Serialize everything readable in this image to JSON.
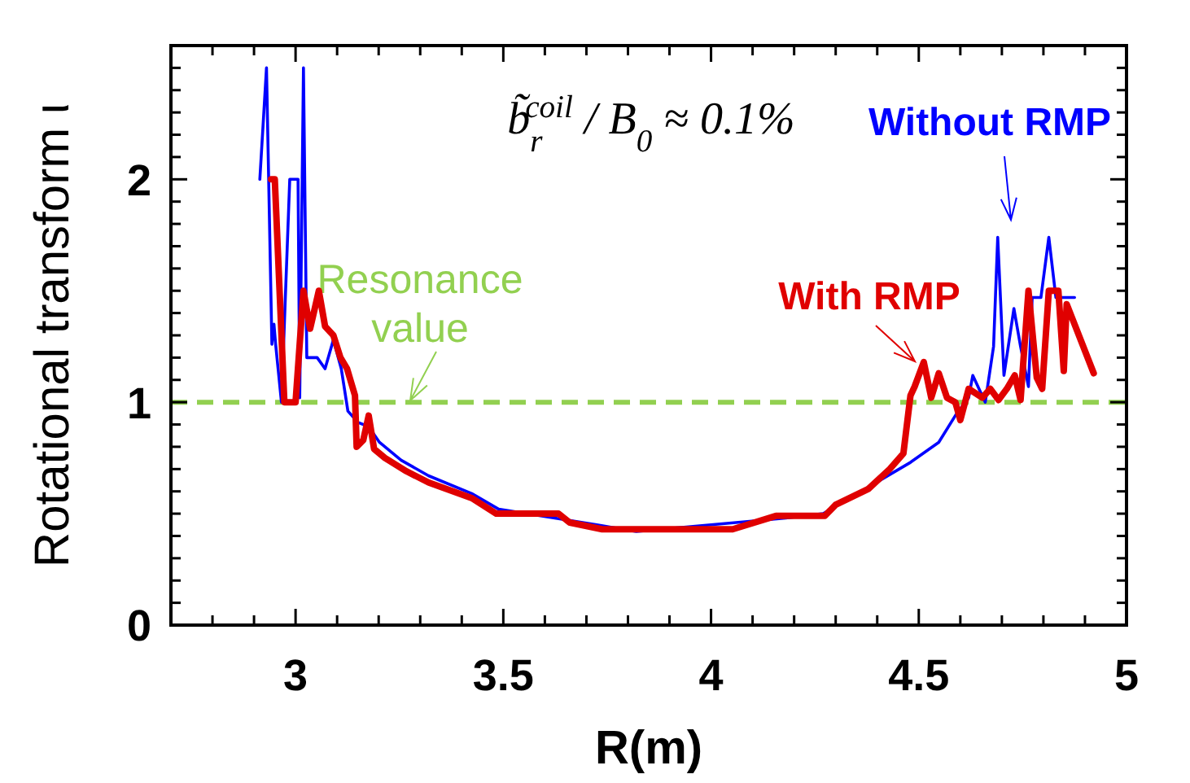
{
  "chart_data": {
    "type": "line",
    "xlabel": "R(m)",
    "ylabel": "Rotational transform ι",
    "xlim": [
      2.7,
      5
    ],
    "ylim": [
      0,
      2.6
    ],
    "xticks": [
      {
        "value": 2.7,
        "label": null
      },
      {
        "value": 2.8,
        "label": null
      },
      {
        "value": 2.9,
        "label": null
      },
      3,
      {
        "value": 3.1,
        "label": null
      },
      {
        "value": 3.2,
        "label": null
      },
      {
        "value": 3.3,
        "label": null
      },
      {
        "value": 3.4,
        "label": null
      },
      3.5,
      {
        "value": 3.6,
        "label": null
      },
      {
        "value": 3.7,
        "label": null
      },
      {
        "value": 3.8,
        "label": null
      },
      {
        "value": 3.9,
        "label": null
      },
      4,
      {
        "value": 4.1,
        "label": null
      },
      {
        "value": 4.2,
        "label": null
      },
      {
        "value": 4.3,
        "label": null
      },
      {
        "value": 4.4,
        "label": null
      },
      4.5,
      {
        "value": 4.6,
        "label": null
      },
      {
        "value": 4.7,
        "label": null
      },
      {
        "value": 4.8,
        "label": null
      },
      {
        "value": 4.9,
        "label": null
      },
      5
    ],
    "yticks": [
      0,
      {
        "value": 0.1,
        "label": null
      },
      {
        "value": 0.2,
        "label": null
      },
      {
        "value": 0.3,
        "label": null
      },
      {
        "value": 0.4,
        "label": null
      },
      {
        "value": 0.5,
        "label": null
      },
      {
        "value": 0.6,
        "label": null
      },
      {
        "value": 0.7,
        "label": null
      },
      {
        "value": 0.8,
        "label": null
      },
      {
        "value": 0.9,
        "label": null
      },
      1,
      {
        "value": 1.1,
        "label": null
      },
      {
        "value": 1.2,
        "label": null
      },
      {
        "value": 1.3,
        "label": null
      },
      {
        "value": 1.4,
        "label": null
      },
      {
        "value": 1.5,
        "label": null
      },
      {
        "value": 1.6,
        "label": null
      },
      {
        "value": 1.7,
        "label": null
      },
      {
        "value": 1.8,
        "label": null
      },
      {
        "value": 1.9,
        "label": null
      },
      2,
      {
        "value": 2.1,
        "label": null
      },
      {
        "value": 2.2,
        "label": null
      },
      {
        "value": 2.3,
        "label": null
      },
      {
        "value": 2.4,
        "label": null
      },
      {
        "value": 2.5,
        "label": null
      },
      {
        "value": 2.6,
        "label": null
      }
    ],
    "marker": "none",
    "series": [
      {
        "name": "Without RMP",
        "color": "#0000ff",
        "x": [
          2.914,
          2.93,
          2.943,
          2.948,
          2.952,
          2.966,
          2.986,
          3.006,
          3.01,
          3.019,
          3.027,
          3.052,
          3.071,
          3.091,
          3.11,
          3.126,
          3.15,
          3.176,
          3.202,
          3.254,
          3.32,
          3.424,
          3.489,
          3.59,
          3.725,
          3.82,
          4.18,
          4.27,
          4.48,
          4.548,
          4.588,
          4.62,
          4.63,
          4.66,
          4.68,
          4.69,
          4.705,
          4.729,
          4.745,
          4.764,
          4.773,
          4.794,
          4.813,
          4.83,
          4.875
        ],
        "values": [
          2.0,
          2.5,
          1.26,
          1.35,
          1.26,
          1.0,
          2.0,
          2.0,
          1.02,
          2.5,
          1.2,
          1.2,
          1.15,
          1.28,
          1.15,
          0.96,
          0.91,
          0.89,
          0.82,
          0.74,
          0.67,
          0.59,
          0.52,
          0.49,
          0.45,
          0.42,
          0.48,
          0.5,
          0.73,
          0.82,
          0.94,
          1.02,
          1.12,
          1.0,
          1.25,
          1.74,
          1.12,
          1.42,
          1.25,
          1.07,
          1.47,
          1.47,
          1.74,
          1.47,
          1.47
        ]
      },
      {
        "name": "With RMP",
        "color": "#e00000",
        "x": [
          2.941,
          2.95,
          2.973,
          3.0,
          3.019,
          3.035,
          3.056,
          3.071,
          3.091,
          3.108,
          3.124,
          3.143,
          3.147,
          3.163,
          3.176,
          3.189,
          3.215,
          3.267,
          3.32,
          3.424,
          3.483,
          3.633,
          3.66,
          3.738,
          4.052,
          4.156,
          4.274,
          4.3,
          4.378,
          4.43,
          4.463,
          4.48,
          4.49,
          4.512,
          4.53,
          4.548,
          4.568,
          4.588,
          4.6,
          4.62,
          4.653,
          4.672,
          4.692,
          4.712,
          4.731,
          4.745,
          4.764,
          4.784,
          4.797,
          4.813,
          4.836,
          4.849,
          4.856,
          4.921
        ],
        "values": [
          2.0,
          2.0,
          1.0,
          1.0,
          1.5,
          1.33,
          1.5,
          1.34,
          1.3,
          1.2,
          1.15,
          1.03,
          0.8,
          0.83,
          0.94,
          0.79,
          0.75,
          0.69,
          0.64,
          0.57,
          0.5,
          0.5,
          0.46,
          0.43,
          0.43,
          0.49,
          0.49,
          0.54,
          0.61,
          0.7,
          0.77,
          1.03,
          1.07,
          1.18,
          1.02,
          1.13,
          1.02,
          1.0,
          0.92,
          1.06,
          1.02,
          1.06,
          1.01,
          1.06,
          1.12,
          1.01,
          1.5,
          1.11,
          1.06,
          1.5,
          1.5,
          1.14,
          1.44,
          1.13
        ]
      }
    ],
    "ref_lines": [
      {
        "axis": "y",
        "value": 1,
        "label": "Resonance value",
        "color": "#92d050",
        "line_style": "dashed"
      }
    ],
    "annotations": [
      "b̃$_{r}$$^{coil}$ / B$_{0}$ ≈ 0.1%"
    ]
  }
}
